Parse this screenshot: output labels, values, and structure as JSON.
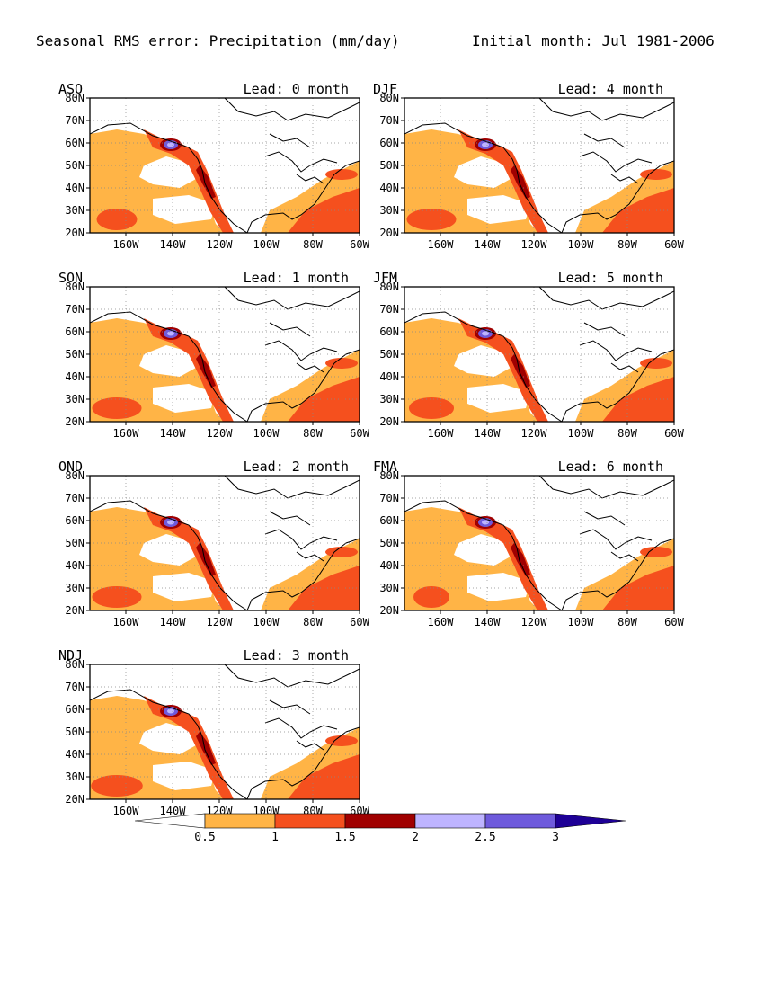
{
  "header": {
    "title": "Seasonal RMS error: Precipitation (mm/day)",
    "initial": "Initial month: Jul 1981-2006"
  },
  "lat_ticks": [
    "80N",
    "70N",
    "60N",
    "50N",
    "40N",
    "30N",
    "20N"
  ],
  "lon_ticks": [
    "160W",
    "140W",
    "120W",
    "100W",
    "80W",
    "60W"
  ],
  "panels": [
    {
      "season": "ASO",
      "lead": "Lead: 0 month",
      "intensity": 0.9
    },
    {
      "season": "DJF",
      "lead": "Lead: 4 month",
      "intensity": 1.1
    },
    {
      "season": "SON",
      "lead": "Lead: 1 month",
      "intensity": 1.1
    },
    {
      "season": "JFM",
      "lead": "Lead: 5 month",
      "intensity": 1.0
    },
    {
      "season": "OND",
      "lead": "Lead: 2 month",
      "intensity": 1.1
    },
    {
      "season": "FMA",
      "lead": "Lead: 6 month",
      "intensity": 0.8
    },
    {
      "season": "NDJ",
      "lead": "Lead: 3 month",
      "intensity": 1.15
    }
  ],
  "colorbar": {
    "labels": [
      "0.5",
      "1",
      "1.5",
      "2",
      "2.5",
      "3"
    ],
    "colors": [
      "#ffffff",
      "#ffb446",
      "#f5501e",
      "#a00000",
      "#beb4ff",
      "#6e5adc",
      "#1e0096"
    ]
  }
}
